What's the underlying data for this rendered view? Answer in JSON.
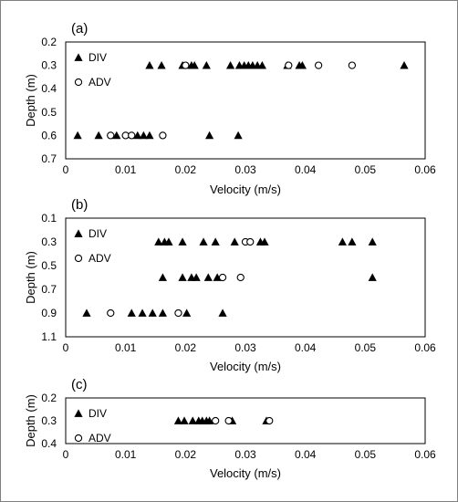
{
  "chart_data": [
    {
      "type": "scatter",
      "panel_label": "(a)",
      "xlabel": "Velocity (m/s)",
      "ylabel": "Depth (m)",
      "xlim": [
        0,
        0.06
      ],
      "ylim": [
        0.2,
        0.7
      ],
      "y_inverted": true,
      "xticks": [
        "0",
        "0.01",
        "0.02",
        "0.03",
        "0.04",
        "0.05",
        "0.06"
      ],
      "yticks": [
        "0.2",
        "0.3",
        "0.4",
        "0.5",
        "0.6",
        "0.7"
      ],
      "legend_position": "top-left",
      "series": [
        {
          "name": "DIV",
          "marker": "filled-triangle",
          "color": "#000000",
          "points": [
            [
              0.014,
              0.3
            ],
            [
              0.016,
              0.3
            ],
            [
              0.0195,
              0.3
            ],
            [
              0.021,
              0.3
            ],
            [
              0.0215,
              0.3
            ],
            [
              0.0235,
              0.3
            ],
            [
              0.0275,
              0.3
            ],
            [
              0.029,
              0.3
            ],
            [
              0.0298,
              0.3
            ],
            [
              0.0305,
              0.3
            ],
            [
              0.0312,
              0.3
            ],
            [
              0.032,
              0.3
            ],
            [
              0.0328,
              0.3
            ],
            [
              0.037,
              0.3
            ],
            [
              0.039,
              0.3
            ],
            [
              0.0395,
              0.3
            ],
            [
              0.0565,
              0.3
            ],
            [
              0.002,
              0.6
            ],
            [
              0.0055,
              0.6
            ],
            [
              0.0085,
              0.6
            ],
            [
              0.012,
              0.6
            ],
            [
              0.013,
              0.6
            ],
            [
              0.014,
              0.6
            ],
            [
              0.024,
              0.6
            ],
            [
              0.0288,
              0.6
            ]
          ]
        },
        {
          "name": "ADV",
          "marker": "open-circle",
          "color": "#000000",
          "points": [
            [
              0.02,
              0.3
            ],
            [
              0.0372,
              0.3
            ],
            [
              0.0422,
              0.3
            ],
            [
              0.0478,
              0.3
            ],
            [
              0.0075,
              0.6
            ],
            [
              0.01,
              0.6
            ],
            [
              0.011,
              0.6
            ],
            [
              0.0162,
              0.6
            ]
          ]
        }
      ]
    },
    {
      "type": "scatter",
      "panel_label": "(b)",
      "xlabel": "Velocity (m/s)",
      "ylabel": "Depth (m)",
      "xlim": [
        0,
        0.06
      ],
      "ylim": [
        0.1,
        1.1
      ],
      "y_inverted": true,
      "xticks": [
        "0",
        "0.01",
        "0.02",
        "0.03",
        "0.04",
        "0.05",
        "0.06"
      ],
      "yticks": [
        "0.1",
        "0.3",
        "0.5",
        "0.7",
        "0.9",
        "1.1"
      ],
      "legend_position": "top-left",
      "series": [
        {
          "name": "DIV",
          "marker": "filled-triangle",
          "color": "#000000",
          "points": [
            [
              0.0155,
              0.3
            ],
            [
              0.0165,
              0.3
            ],
            [
              0.0172,
              0.3
            ],
            [
              0.0195,
              0.3
            ],
            [
              0.023,
              0.3
            ],
            [
              0.025,
              0.3
            ],
            [
              0.0282,
              0.3
            ],
            [
              0.0325,
              0.3
            ],
            [
              0.0332,
              0.3
            ],
            [
              0.0462,
              0.3
            ],
            [
              0.0478,
              0.3
            ],
            [
              0.0512,
              0.3
            ],
            [
              0.0162,
              0.6
            ],
            [
              0.0195,
              0.6
            ],
            [
              0.021,
              0.6
            ],
            [
              0.0218,
              0.6
            ],
            [
              0.0238,
              0.6
            ],
            [
              0.0253,
              0.6
            ],
            [
              0.0512,
              0.6
            ],
            [
              0.0035,
              0.9
            ],
            [
              0.011,
              0.9
            ],
            [
              0.0128,
              0.9
            ],
            [
              0.0145,
              0.9
            ],
            [
              0.0162,
              0.9
            ],
            [
              0.0202,
              0.9
            ],
            [
              0.0262,
              0.9
            ]
          ]
        },
        {
          "name": "ADV",
          "marker": "open-circle",
          "color": "#000000",
          "points": [
            [
              0.03,
              0.3
            ],
            [
              0.0308,
              0.3
            ],
            [
              0.0262,
              0.6
            ],
            [
              0.0292,
              0.6
            ],
            [
              0.0075,
              0.9
            ],
            [
              0.0188,
              0.9
            ]
          ]
        }
      ]
    },
    {
      "type": "scatter",
      "panel_label": "(c)",
      "xlabel": "Velocity (m/s)",
      "ylabel": "Depth (m)",
      "xlim": [
        0,
        0.06
      ],
      "ylim": [
        0.2,
        0.4
      ],
      "y_inverted": true,
      "xticks": [
        "0",
        "0.01",
        "0.02",
        "0.03",
        "0.04",
        "0.05",
        "0.06"
      ],
      "yticks": [
        "0.2",
        "0.3",
        "0.4"
      ],
      "legend_position": "top-left",
      "series": [
        {
          "name": "DIV",
          "marker": "filled-triangle",
          "color": "#000000",
          "points": [
            [
              0.0188,
              0.3
            ],
            [
              0.0198,
              0.3
            ],
            [
              0.0212,
              0.3
            ],
            [
              0.0222,
              0.3
            ],
            [
              0.0228,
              0.3
            ],
            [
              0.0235,
              0.3
            ],
            [
              0.024,
              0.3
            ],
            [
              0.0278,
              0.3
            ],
            [
              0.0335,
              0.3
            ]
          ]
        },
        {
          "name": "ADV",
          "marker": "open-circle",
          "color": "#000000",
          "points": [
            [
              0.025,
              0.3
            ],
            [
              0.0272,
              0.3
            ],
            [
              0.034,
              0.3
            ]
          ]
        }
      ]
    }
  ]
}
